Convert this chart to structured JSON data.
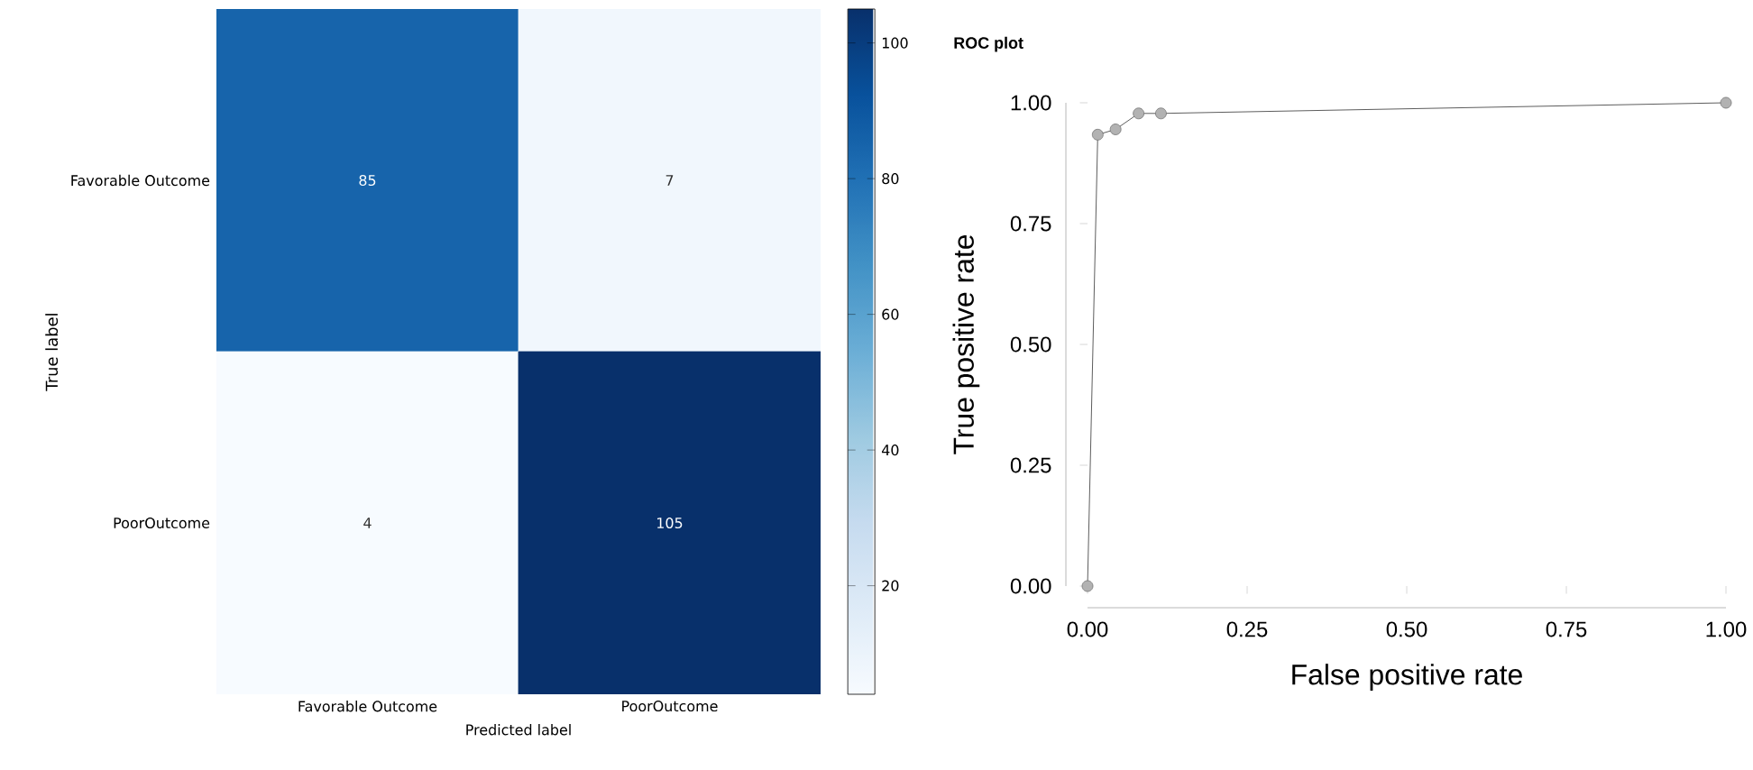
{
  "chart_data": [
    {
      "type": "heatmap",
      "categories": [
        "Favorable Outcome",
        "PoorOutcome"
      ],
      "y_categories": [
        "Favorable Outcome",
        "PoorOutcome"
      ],
      "cells": [
        [
          85,
          7
        ],
        [
          4,
          105
        ]
      ],
      "data_labels": true,
      "xlabel": "Predicted label",
      "ylabel": "True label",
      "clim": [
        4,
        105
      ],
      "cticks": [
        20,
        40,
        60,
        80,
        100
      ]
    },
    {
      "type": "line",
      "title": "ROC plot",
      "xlabel": "False positive rate",
      "ylabel": "True positive rate",
      "x": [
        0,
        0.016,
        0.044,
        0.08,
        0.115,
        1
      ],
      "values": [
        0,
        0.934,
        0.945,
        0.978,
        0.978,
        1
      ],
      "color": "#333333",
      "marker": "circle",
      "xlim": [
        0,
        1
      ],
      "ylim": [
        0,
        1
      ],
      "xticks": [
        {
          "value": 0,
          "label": "0.00"
        },
        {
          "value": 0.25,
          "label": "0.25"
        },
        {
          "value": 0.5,
          "label": "0.50"
        },
        {
          "value": 0.75,
          "label": "0.75"
        },
        {
          "value": 1,
          "label": "1.00"
        }
      ],
      "yticks": [
        {
          "value": 0,
          "label": "0.00"
        },
        {
          "value": 0.25,
          "label": "0.25"
        },
        {
          "value": 0.5,
          "label": "0.50"
        },
        {
          "value": 0.75,
          "label": "0.75"
        },
        {
          "value": 1,
          "label": "1.00"
        }
      ]
    }
  ]
}
